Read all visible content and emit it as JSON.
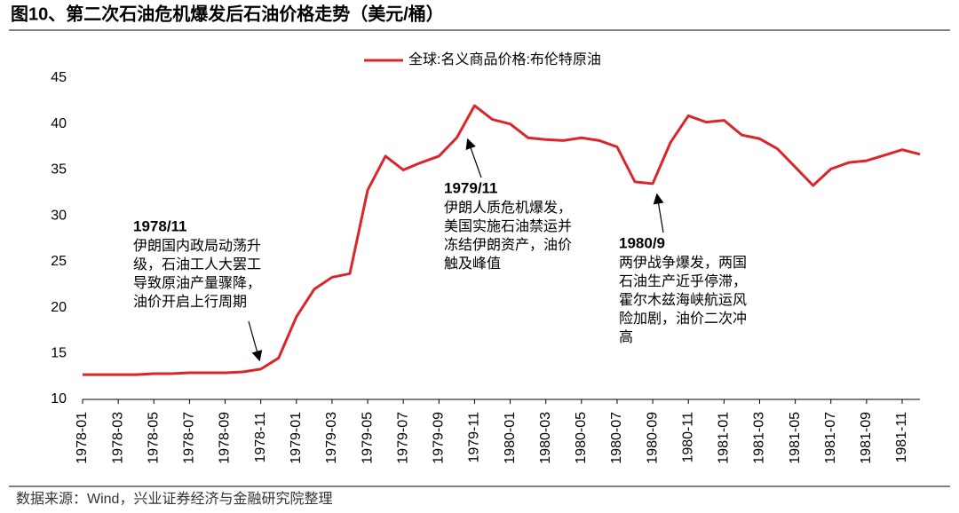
{
  "chart_data": {
    "type": "line",
    "title": "图10、第二次石油危机爆发后石油价格走势（美元/桶）",
    "source": "数据来源：Wind，兴业证券经济与金融研究院整理",
    "categories": [
      "1978-01",
      null,
      "1978-03",
      null,
      "1978-05",
      null,
      "1978-07",
      null,
      "1978-09",
      null,
      "1978-11",
      null,
      "1979-01",
      null,
      "1979-03",
      null,
      "1979-05",
      null,
      "1979-07",
      null,
      "1979-09",
      null,
      "1979-11",
      null,
      "1980-01",
      null,
      "1980-03",
      null,
      "1980-05",
      null,
      "1980-07",
      null,
      "1980-09",
      null,
      "1980-11",
      null,
      "1981-01",
      null,
      "1981-03",
      null,
      "1981-05",
      null,
      "1981-07",
      null,
      "1981-09",
      null,
      "1981-11",
      null
    ],
    "series": [
      {
        "name": "全球:名义商品价格:布伦特原油",
        "color": "#d9262b",
        "values": [
          12.7,
          12.7,
          12.7,
          12.7,
          12.8,
          12.8,
          12.9,
          12.9,
          12.9,
          13.0,
          13.3,
          14.5,
          19.0,
          22.0,
          23.3,
          23.7,
          32.8,
          36.5,
          35.0,
          35.8,
          36.5,
          38.5,
          42.0,
          40.5,
          40.0,
          38.5,
          38.3,
          38.2,
          38.5,
          38.2,
          37.5,
          33.7,
          33.5,
          38.0,
          40.9,
          40.2,
          40.4,
          38.8,
          38.4,
          37.3,
          35.3,
          33.3,
          35.1,
          35.8,
          36.0,
          36.6,
          37.2,
          36.7
        ]
      }
    ],
    "ylim": [
      10,
      45
    ],
    "yticks": [
      10,
      15,
      20,
      25,
      30,
      35,
      40,
      45
    ],
    "legend": "top",
    "annotations": [
      {
        "title": "1978/11",
        "lines": [
          "伊朗国内政局动荡升",
          "级，石油工人大罢工",
          "导致原油产量骤降，",
          "油价开启上行周期"
        ]
      },
      {
        "title": "1979/11",
        "lines": [
          "伊朗人质危机爆发，",
          "美国实施石油禁运并",
          "冻结伊朗资产，油价",
          "触及峰值"
        ]
      },
      {
        "title": "1980/9",
        "lines": [
          "两伊战争爆发，两国",
          "石油生产近乎停滞，",
          "霍尔木兹海峡航运风",
          "险加剧，油价二次冲",
          "高"
        ]
      }
    ]
  }
}
